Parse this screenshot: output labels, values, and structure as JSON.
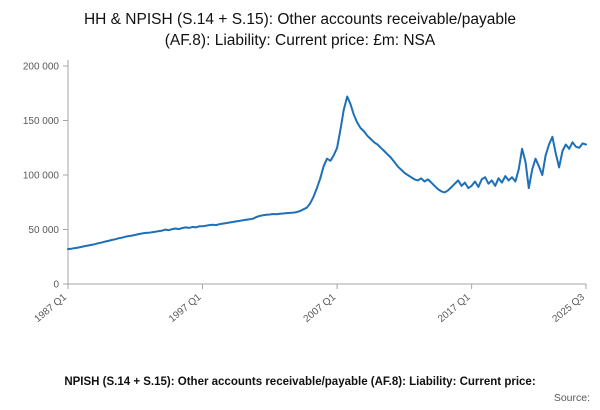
{
  "title": "HH & NPISH (S.14 + S.15): Other accounts receivable/payable (AF.8): Liability: Current price: £m: NSA",
  "footer": {
    "caption": "NPISH (S.14 + S.15): Other accounts receivable/payable (AF.8): Liability: Current price:",
    "source_label": "Source:"
  },
  "chart_data": {
    "type": "line",
    "title": "HH & NPISH (S.14 + S.15): Other accounts receivable/payable (AF.8): Liability: Current price: £m: NSA",
    "xlabel": "",
    "ylabel": "",
    "x_start": "1987 Q1",
    "x_end": "2025 Q3",
    "x_frequency": "quarterly",
    "ylim": [
      0,
      200000
    ],
    "grid": false,
    "legend": "none",
    "line_color": "#1d70b8",
    "axis_color": "#a6a6a6",
    "tick_color": "#595959",
    "yticks": [
      {
        "label": "0",
        "value": 0
      },
      {
        "label": "50 000",
        "value": 50000
      },
      {
        "label": "100 000",
        "value": 100000
      },
      {
        "label": "150 000",
        "value": 150000
      },
      {
        "label": "200 000",
        "value": 200000
      }
    ],
    "xticks": [
      {
        "label": "1987 Q1",
        "index": 0
      },
      {
        "label": "1997 Q1",
        "index": 40
      },
      {
        "label": "2007 Q1",
        "index": 80
      },
      {
        "label": "2017 Q1",
        "index": 120
      },
      {
        "label": "2025 Q3",
        "index": 154
      }
    ],
    "values": [
      32000,
      32400,
      32900,
      33400,
      34000,
      34800,
      35300,
      35900,
      36500,
      37400,
      38000,
      38900,
      39500,
      40400,
      41000,
      41900,
      42500,
      43300,
      43900,
      44400,
      45000,
      45800,
      46300,
      46900,
      47000,
      47500,
      48000,
      48500,
      49000,
      49900,
      49400,
      50400,
      50900,
      50400,
      51400,
      51900,
      51500,
      52400,
      51900,
      52900,
      53000,
      53500,
      54000,
      54400,
      54000,
      54900,
      55400,
      55900,
      56400,
      56900,
      57400,
      57900,
      58400,
      58900,
      59400,
      59900,
      61500,
      62500,
      63000,
      63500,
      63800,
      64200,
      64000,
      64500,
      64700,
      65000,
      65200,
      65500,
      66000,
      67000,
      68500,
      70000,
      74000,
      80000,
      88000,
      97000,
      108000,
      115000,
      113000,
      118000,
      125000,
      142000,
      160000,
      172000,
      165000,
      155000,
      148000,
      143000,
      140000,
      136000,
      133000,
      130000,
      128000,
      125000,
      122000,
      119000,
      116000,
      112000,
      108000,
      105000,
      102000,
      100000,
      98000,
      96000,
      95000,
      97000,
      94000,
      96000,
      93000,
      90000,
      87000,
      85000,
      84000,
      86000,
      89000,
      92000,
      95000,
      90000,
      93000,
      88000,
      90000,
      94000,
      89000,
      96000,
      98000,
      92000,
      95000,
      90000,
      97000,
      93000,
      99000,
      95000,
      98000,
      94000,
      105000,
      124000,
      112000,
      88000,
      105000,
      115000,
      108000,
      100000,
      118000,
      128000,
      135000,
      120000,
      107000,
      122000,
      128000,
      124000,
      130000,
      126000,
      125000,
      129000,
      128000
    ]
  }
}
